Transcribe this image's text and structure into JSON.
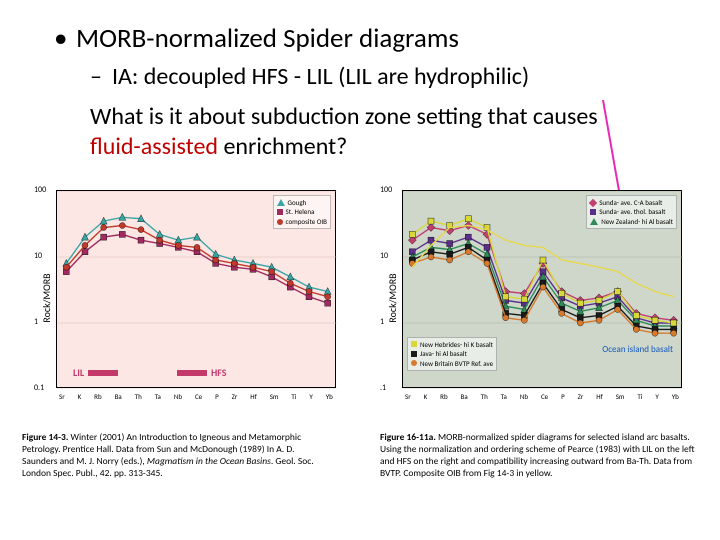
{
  "heading": "MORB-normalized Spider diagrams",
  "subheading": "IA: decoupled HFS - LIL (LIL are hydrophilic)",
  "question_pre": "What is it about subduction zone setting that causes ",
  "question_emph": "fluid-assisted",
  "question_post": " enrichment?",
  "xticks": [
    "Sr",
    "K",
    "Rb",
    "Ba",
    "Th",
    "Ta",
    "Nb",
    "Ce",
    "P",
    "Zr",
    "Hf",
    "Sm",
    "Ti",
    "Y",
    "Yb"
  ],
  "left_chart": {
    "type": "line",
    "ylabel": "Rock/MORB",
    "yscale": "log",
    "ylim": [
      0.1,
      100
    ],
    "yticks": [
      0.1,
      1,
      10,
      100
    ],
    "ytick_labels": [
      "0.1",
      "1",
      "10",
      "100"
    ],
    "background_color": "#fde7e4",
    "grid_color": "#d9b8b3",
    "lil_label": "LIL",
    "hfs_label": "HFS",
    "lilhfs_color": "#c33a6a",
    "series": [
      {
        "name": "Gough",
        "marker": "triangle",
        "color": "#3aa5a5",
        "values": [
          8,
          20,
          35,
          40,
          38,
          22,
          18,
          20,
          11,
          9,
          8,
          7,
          5,
          3.5,
          3
        ]
      },
      {
        "name": "St. Helena",
        "marker": "square",
        "color": "#a12a5e",
        "values": [
          6,
          12,
          20,
          22,
          18,
          16,
          14,
          12,
          8,
          7,
          6.5,
          5,
          3.5,
          2.5,
          2
        ]
      },
      {
        "name": "composite OIB",
        "marker": "circle",
        "color": "#c0392b",
        "values": [
          7,
          15,
          28,
          30,
          26,
          18,
          15,
          14,
          9,
          8,
          7,
          6,
          4,
          3,
          2.5
        ]
      }
    ]
  },
  "right_chart": {
    "type": "line",
    "panel": "a",
    "ylabel": "Rock/MORB",
    "yscale": "log",
    "ylim": [
      0.1,
      100
    ],
    "yticks": [
      0.1,
      1,
      10,
      100
    ],
    "ytick_labels": [
      ".1",
      "1",
      "10",
      "100"
    ],
    "background_color": "#cfd7cb",
    "grid_color": "#aab5a6",
    "ocean_label": "Ocean island basalt",
    "ocean_color": "#1158bd",
    "legend_top": [
      {
        "name": "Sunda- ave. C-A basalt",
        "marker": "diamond",
        "color": "#c04070"
      },
      {
        "name": "Sunda- ave. thol. basalt",
        "marker": "square",
        "color": "#5a2f8a"
      },
      {
        "name": "New Zealand- hi Al basalt",
        "marker": "triangle",
        "color": "#2e8b57"
      }
    ],
    "legend_bottom": [
      {
        "name": "New Hebrides- hi K basalt",
        "marker": "square",
        "color": "#d8d83a"
      },
      {
        "name": "Java- hi Al basalt",
        "marker": "square",
        "color": "#1a1a1a"
      },
      {
        "name": "New Britain BVTP Ref. ave",
        "marker": "circle",
        "color": "#d77a2e"
      }
    ],
    "series": [
      {
        "color": "#c04070",
        "marker": "diamond",
        "values": [
          18,
          28,
          25,
          30,
          22,
          3,
          2.8,
          8,
          3,
          2.2,
          2.4,
          3,
          1.4,
          1.2,
          1.1
        ]
      },
      {
        "color": "#5a2f8a",
        "marker": "square",
        "values": [
          12,
          18,
          16,
          20,
          14,
          2.2,
          2,
          6,
          2.4,
          1.8,
          2,
          2.5,
          1.2,
          1,
          1
        ]
      },
      {
        "color": "#2e8b57",
        "marker": "triangle",
        "values": [
          10,
          14,
          13,
          16,
          11,
          1.8,
          1.6,
          5,
          2,
          1.5,
          1.7,
          2.2,
          1.1,
          0.9,
          0.9
        ]
      },
      {
        "color": "#d8d83a",
        "marker": "square",
        "values": [
          22,
          35,
          30,
          38,
          28,
          2.5,
          2.3,
          9,
          2.8,
          2,
          2.2,
          3,
          1.3,
          1.1,
          1
        ]
      },
      {
        "color": "#1a1a1a",
        "marker": "square",
        "values": [
          9,
          12,
          11,
          14,
          9,
          1.4,
          1.3,
          4,
          1.6,
          1.2,
          1.3,
          1.8,
          0.9,
          0.8,
          0.8
        ]
      },
      {
        "color": "#d77a2e",
        "marker": "circle",
        "values": [
          8,
          10,
          9,
          12,
          8,
          1.2,
          1.1,
          3.5,
          1.4,
          1,
          1.1,
          1.6,
          0.8,
          0.7,
          0.7
        ]
      },
      {
        "color": "#e6d84a",
        "marker": "none",
        "values": [
          7,
          15,
          28,
          30,
          26,
          18,
          15,
          14,
          9,
          8,
          7,
          6,
          4,
          3,
          2.5
        ]
      }
    ]
  },
  "caption_left": {
    "ref": "Figure 14-3.",
    "text": " Winter (2001) An Introduction to Igneous and Metamorphic Petrology. Prentice Hall. Data from Sun and McDonough (1989) In A. D. Saunders and M. J. Norry (eds.), Magmatism in the Ocean Basins. Geol. Soc. London Spec. Publ., 42. pp. 313-345."
  },
  "caption_right": {
    "ref": "Figure 16-11a.",
    "text": " MORB-normalized spider diagrams for selected island arc basalts. Using the normalization and ordering scheme of Pearce (1983) with LIL on the left and HFS on the right and compatibility increasing outward from Ba-Th. Data from BVTP. Composite OIB from Fig 14-3 in yellow."
  },
  "italic_1": "Magmatism in the Ocean Basins"
}
